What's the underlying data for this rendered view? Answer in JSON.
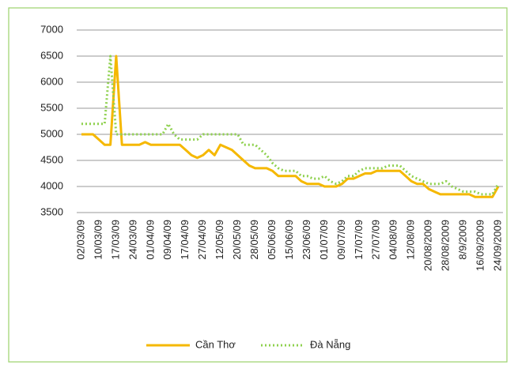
{
  "chart_data": {
    "type": "line",
    "categories": [
      "02/03/09",
      null,
      null,
      "10/03/09",
      null,
      null,
      "17/03/09",
      null,
      null,
      "24/03/09",
      null,
      null,
      "01/04/09",
      null,
      null,
      "09/04/09",
      null,
      null,
      "17/04/09",
      null,
      null,
      "27/04/09",
      null,
      null,
      "12/05/09",
      null,
      null,
      "20/05/09",
      null,
      null,
      "28/05/09",
      null,
      null,
      "05/06/09",
      null,
      null,
      "15/06/09",
      null,
      null,
      "23/06/09",
      null,
      null,
      "01/07/09",
      null,
      null,
      "09/07/09",
      null,
      null,
      "17/07/09",
      null,
      null,
      "27/07/09",
      null,
      null,
      "04/08/09",
      null,
      null,
      "12/08/09",
      null,
      null,
      "20/08/2009",
      null,
      null,
      "28/08/2009",
      null,
      null,
      "8/9/2009",
      null,
      null,
      "16/09/2009",
      null,
      null,
      "24/09/2009"
    ],
    "series": [
      {
        "name": "Cần Thơ",
        "color": "#f5b800",
        "dash": "solid",
        "values": [
          5000,
          5000,
          5000,
          4900,
          4800,
          4800,
          6500,
          4800,
          4800,
          4800,
          4800,
          4850,
          4800,
          4800,
          4800,
          4800,
          4800,
          4800,
          4700,
          4600,
          4550,
          4600,
          4700,
          4600,
          4800,
          4750,
          4700,
          4600,
          4500,
          4400,
          4350,
          4350,
          4350,
          4300,
          4200,
          4200,
          4200,
          4200,
          4100,
          4050,
          4050,
          4050,
          4000,
          4000,
          4000,
          4050,
          4150,
          4150,
          4200,
          4250,
          4250,
          4300,
          4300,
          4300,
          4300,
          4300,
          4200,
          4100,
          4050,
          4050,
          3950,
          3900,
          3850,
          3850,
          3850,
          3850,
          3850,
          3850,
          3800,
          3800,
          3800,
          3800,
          4000
        ]
      },
      {
        "name": "Đà Nẵng",
        "color": "#8fd14f",
        "dash": "dotted",
        "values": [
          5200,
          5200,
          5200,
          5200,
          5200,
          6500,
          5000,
          5000,
          5000,
          5000,
          5000,
          5000,
          5000,
          5000,
          5000,
          5200,
          5000,
          4900,
          4900,
          4900,
          4900,
          5000,
          5000,
          5000,
          5000,
          5000,
          5000,
          5000,
          4800,
          4800,
          4800,
          4700,
          4600,
          4450,
          4350,
          4300,
          4300,
          4300,
          4200,
          4200,
          4150,
          4150,
          4200,
          4100,
          4050,
          4100,
          4200,
          4200,
          4300,
          4350,
          4350,
          4350,
          4350,
          4400,
          4400,
          4400,
          4300,
          4200,
          4150,
          4100,
          4050,
          4050,
          4050,
          4100,
          4000,
          3950,
          3900,
          3900,
          3900,
          3850,
          3850,
          3850,
          4050
        ]
      }
    ],
    "ylim": [
      3500,
      7000
    ],
    "yticks": [
      3500,
      4000,
      4500,
      5000,
      5500,
      6000,
      6500,
      7000
    ],
    "grid": true,
    "legend": "bottom"
  }
}
